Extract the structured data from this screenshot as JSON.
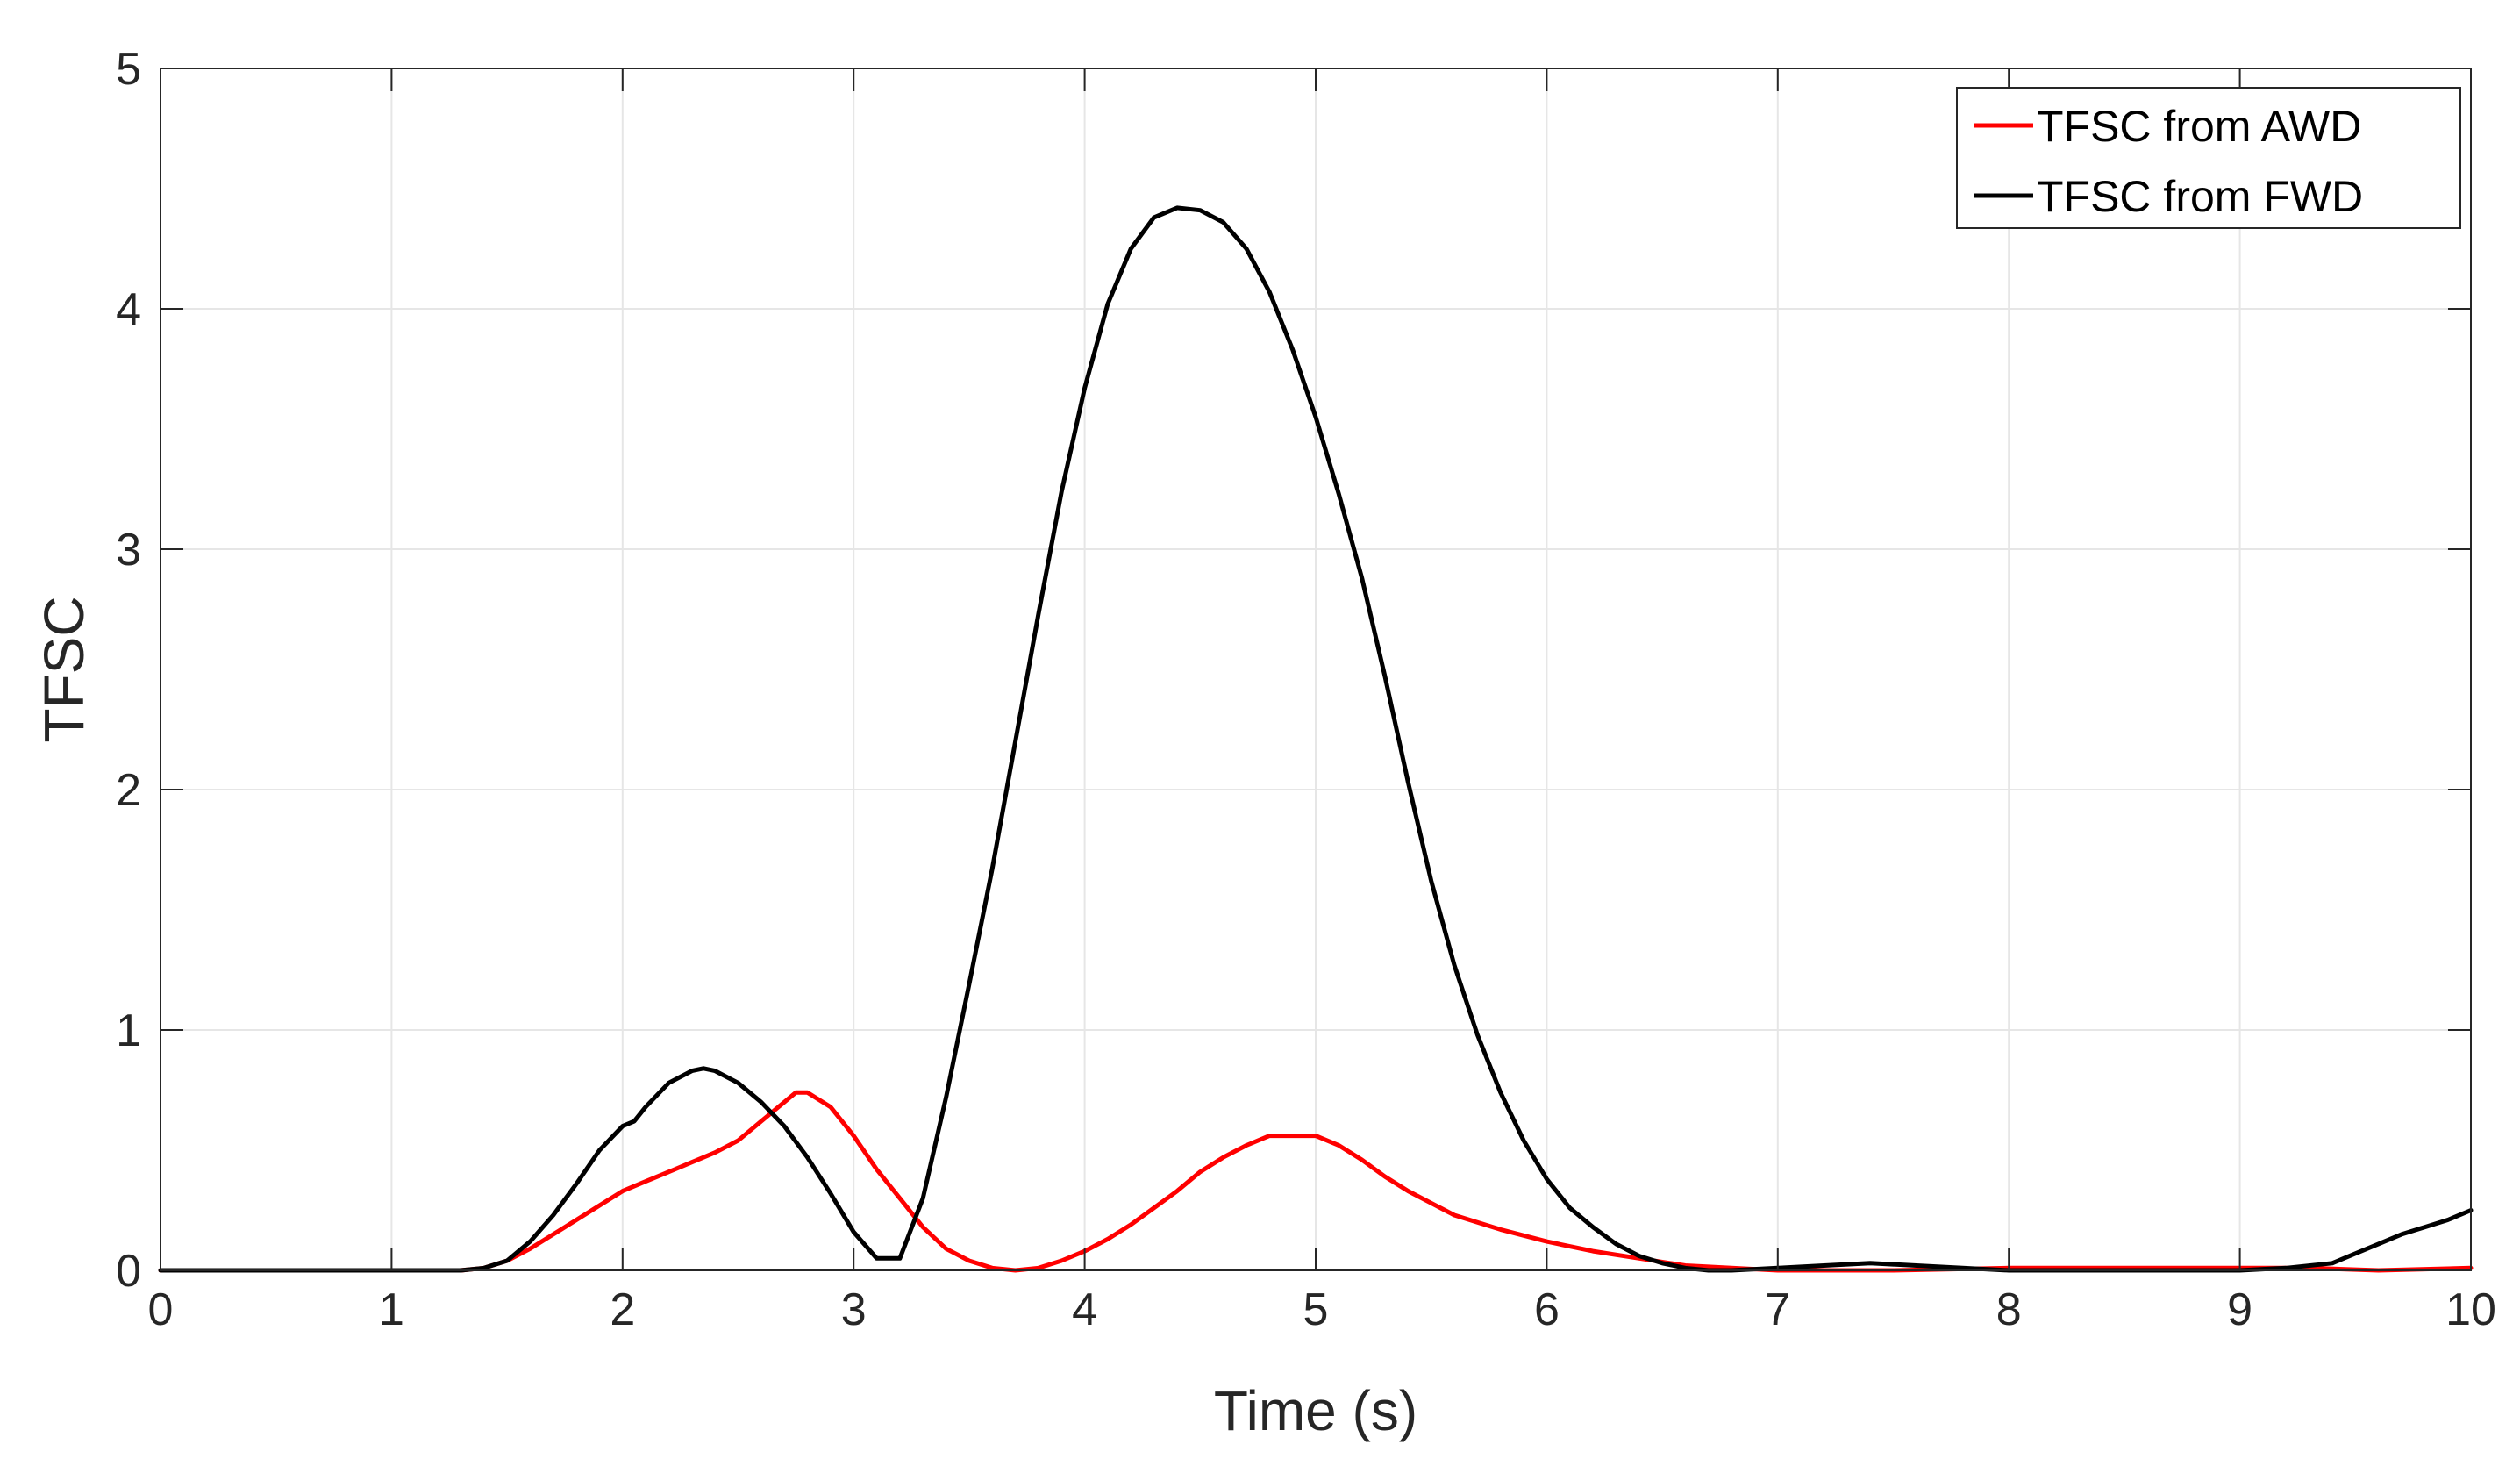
{
  "chart_data": {
    "type": "line",
    "title": "",
    "xlabel": "Time (s)",
    "ylabel": "TFSC",
    "xlim": [
      0,
      10
    ],
    "ylim": [
      0,
      5
    ],
    "xticks": [
      0,
      1,
      2,
      3,
      4,
      5,
      6,
      7,
      8,
      9,
      10
    ],
    "yticks": [
      0,
      1,
      2,
      3,
      4,
      5
    ],
    "grid": true,
    "legend_position": "top-right",
    "series": [
      {
        "name": "TFSC from AWD",
        "color": "#ff0000",
        "x": [
          0,
          1.0,
          1.3,
          1.4,
          1.5,
          1.6,
          1.7,
          1.8,
          1.9,
          2.0,
          2.1,
          2.2,
          2.3,
          2.4,
          2.5,
          2.6,
          2.7,
          2.75,
          2.8,
          2.9,
          3.0,
          3.1,
          3.2,
          3.3,
          3.4,
          3.5,
          3.6,
          3.7,
          3.8,
          3.9,
          4.0,
          4.1,
          4.2,
          4.3,
          4.4,
          4.5,
          4.6,
          4.7,
          4.8,
          4.9,
          5.0,
          5.1,
          5.2,
          5.3,
          5.4,
          5.5,
          5.6,
          5.7,
          5.8,
          6.0,
          6.2,
          6.4,
          6.6,
          6.8,
          7.0,
          7.5,
          8.0,
          8.5,
          9.0,
          9.3,
          9.6,
          10.0
        ],
        "y": [
          0,
          0,
          0.0,
          0.01,
          0.04,
          0.09,
          0.15,
          0.21,
          0.27,
          0.33,
          0.37,
          0.41,
          0.45,
          0.49,
          0.54,
          0.62,
          0.7,
          0.74,
          0.74,
          0.68,
          0.56,
          0.42,
          0.3,
          0.18,
          0.09,
          0.04,
          0.01,
          0.0,
          0.01,
          0.04,
          0.08,
          0.13,
          0.19,
          0.26,
          0.33,
          0.41,
          0.47,
          0.52,
          0.56,
          0.56,
          0.56,
          0.52,
          0.46,
          0.39,
          0.33,
          0.28,
          0.23,
          0.2,
          0.17,
          0.12,
          0.08,
          0.05,
          0.02,
          0.01,
          0.0,
          0.0,
          0.01,
          0.01,
          0.01,
          0.01,
          0.0,
          0.01
        ]
      },
      {
        "name": "TFSC from FWD",
        "color": "#000000",
        "x": [
          0,
          1.0,
          1.3,
          1.4,
          1.5,
          1.6,
          1.7,
          1.8,
          1.9,
          2.0,
          2.05,
          2.1,
          2.2,
          2.3,
          2.35,
          2.4,
          2.5,
          2.6,
          2.7,
          2.8,
          2.9,
          3.0,
          3.1,
          3.2,
          3.3,
          3.4,
          3.5,
          3.6,
          3.7,
          3.8,
          3.9,
          4.0,
          4.1,
          4.2,
          4.3,
          4.4,
          4.5,
          4.6,
          4.7,
          4.8,
          4.9,
          5.0,
          5.1,
          5.2,
          5.3,
          5.4,
          5.5,
          5.6,
          5.7,
          5.8,
          5.9,
          6.0,
          6.1,
          6.2,
          6.3,
          6.4,
          6.5,
          6.6,
          6.7,
          6.8,
          7.0,
          7.2,
          7.4,
          7.6,
          7.8,
          8.0,
          8.5,
          9.0,
          9.2,
          9.4,
          9.5,
          9.6,
          9.7,
          9.8,
          9.9,
          10.0
        ],
        "y": [
          0,
          0,
          0.0,
          0.01,
          0.04,
          0.12,
          0.23,
          0.36,
          0.5,
          0.6,
          0.62,
          0.68,
          0.78,
          0.83,
          0.84,
          0.83,
          0.78,
          0.7,
          0.6,
          0.47,
          0.32,
          0.16,
          0.05,
          0.05,
          0.3,
          0.72,
          1.19,
          1.67,
          2.2,
          2.73,
          3.24,
          3.67,
          4.02,
          4.25,
          4.38,
          4.42,
          4.41,
          4.36,
          4.25,
          4.07,
          3.83,
          3.55,
          3.23,
          2.88,
          2.47,
          2.03,
          1.62,
          1.27,
          0.98,
          0.74,
          0.54,
          0.38,
          0.26,
          0.18,
          0.11,
          0.06,
          0.03,
          0.01,
          0.0,
          0.0,
          0.01,
          0.02,
          0.03,
          0.02,
          0.01,
          0.0,
          0.0,
          0.0,
          0.01,
          0.03,
          0.07,
          0.11,
          0.15,
          0.18,
          0.21,
          0.25
        ]
      }
    ]
  }
}
